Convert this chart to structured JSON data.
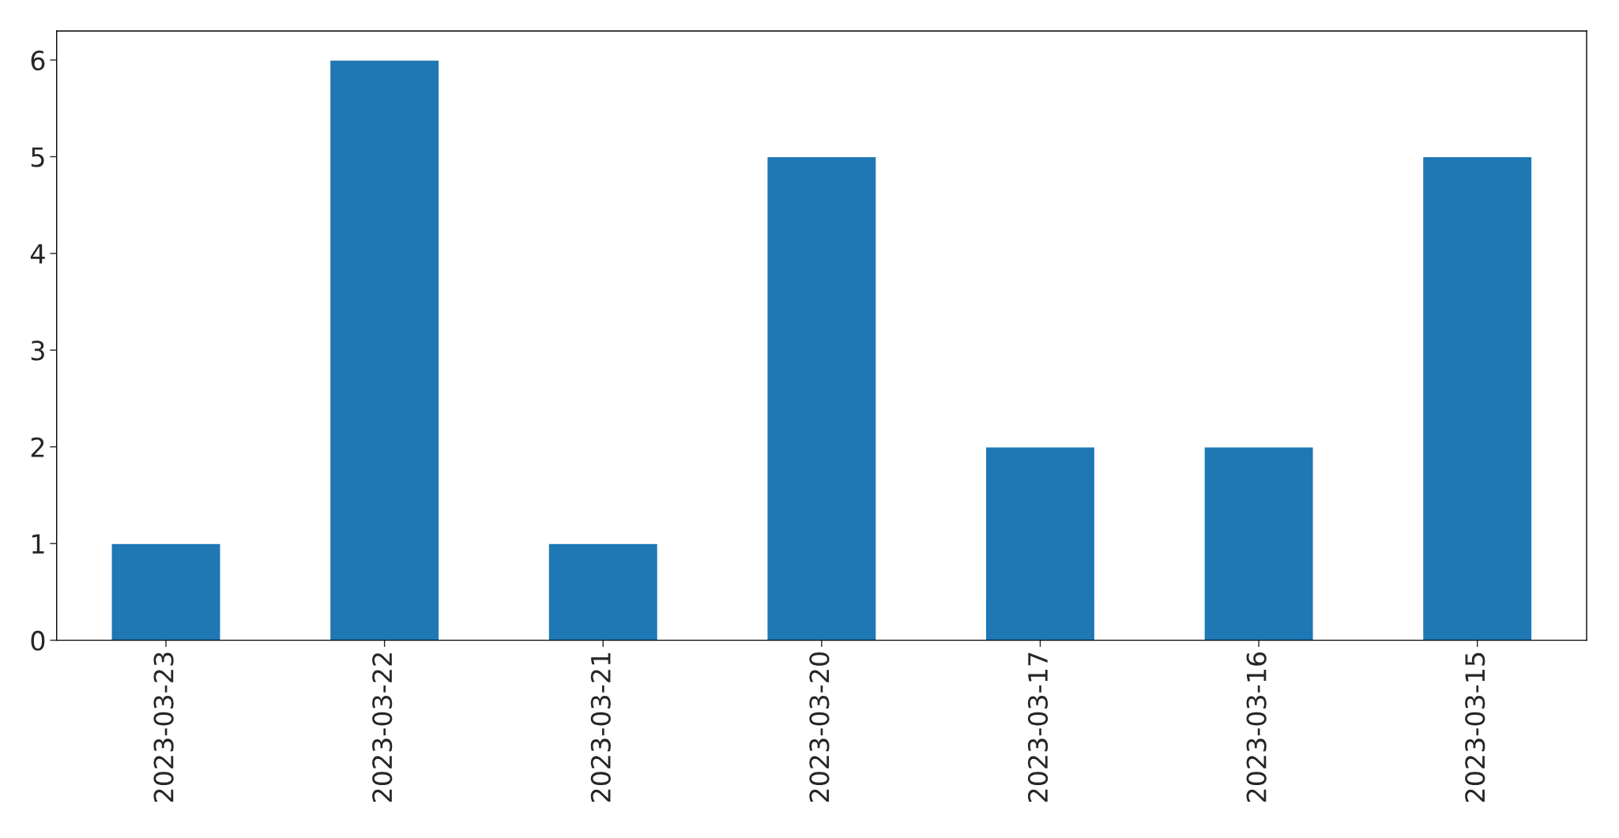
{
  "chart_data": {
    "type": "bar",
    "categories": [
      "2023-03-23",
      "2023-03-22",
      "2023-03-21",
      "2023-03-20",
      "2023-03-17",
      "2023-03-16",
      "2023-03-15"
    ],
    "values": [
      1,
      6,
      1,
      5,
      2,
      2,
      5
    ],
    "color": "#1f77b4",
    "ylim": [
      0,
      6.3
    ],
    "yticks": [
      0,
      1,
      2,
      3,
      4,
      5,
      6
    ],
    "grid": false,
    "legend": false
  }
}
